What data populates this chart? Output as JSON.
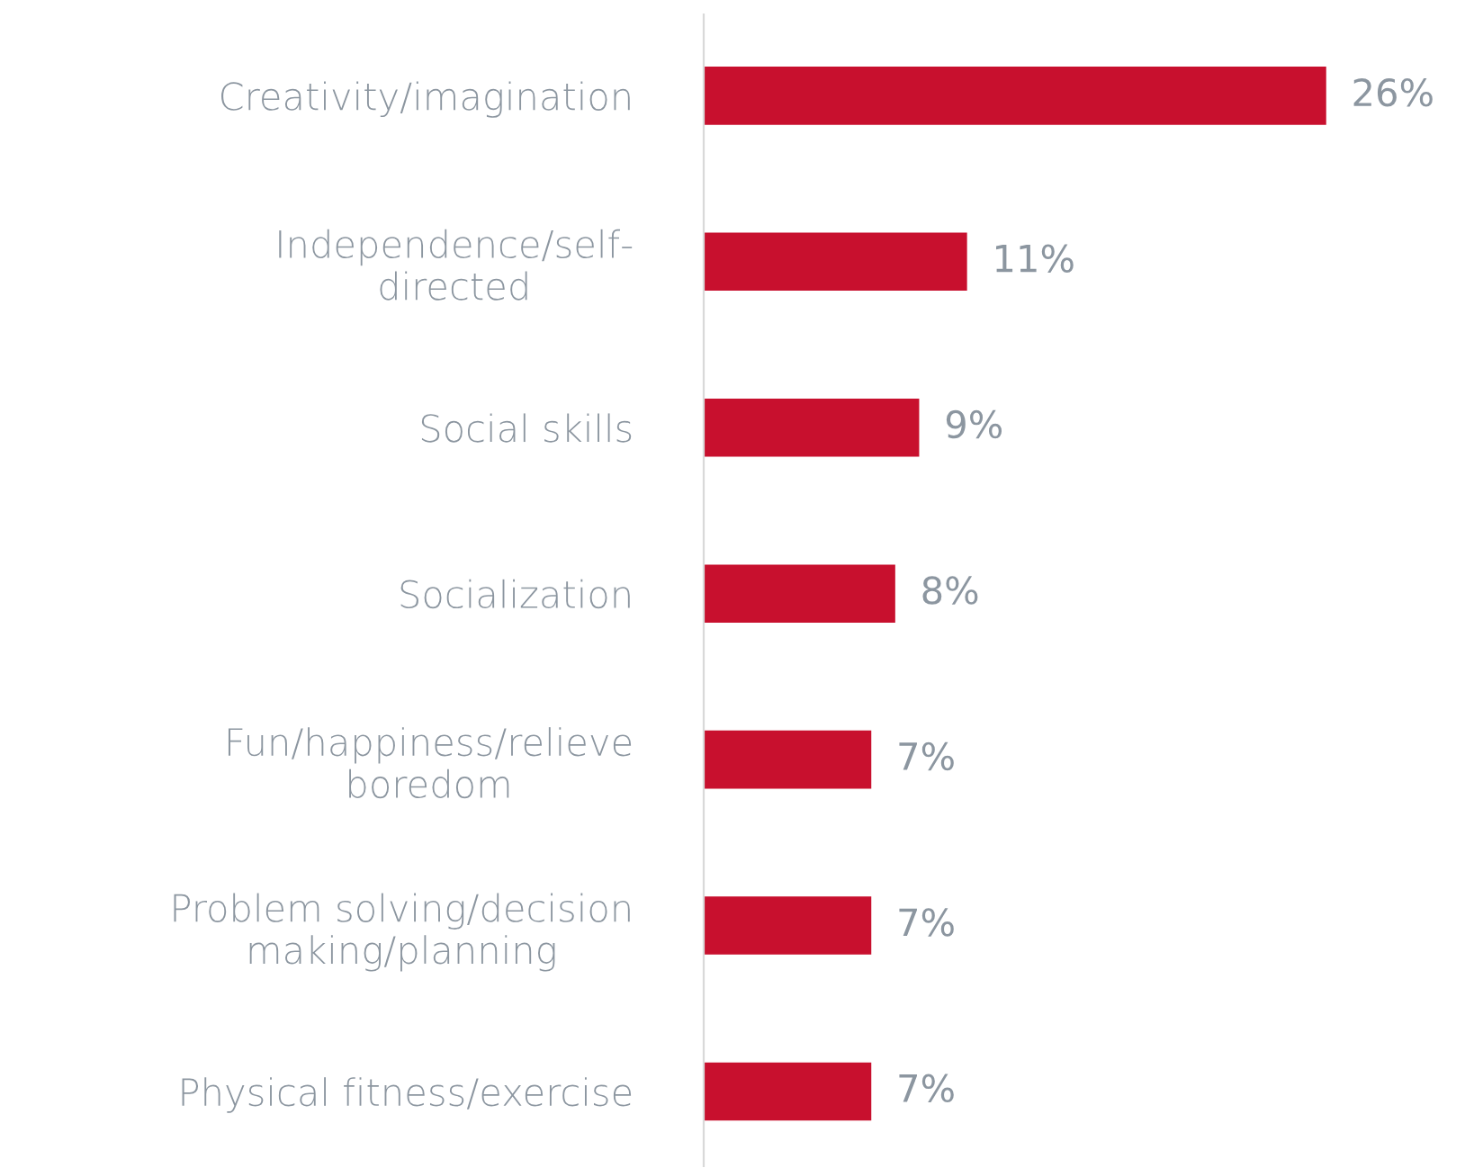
{
  "chart_data": {
    "type": "bar",
    "orientation": "horizontal",
    "categories": [
      "Creativity/imagination",
      "Independence/self-\ndirected",
      "Social skills",
      "Socialization",
      "Fun/happiness/relieve\nboredom",
      "Problem solving/decision\nmaking/planning",
      "Physical fitness/exercise"
    ],
    "values": [
      26,
      11,
      9,
      8,
      7,
      7,
      7
    ],
    "value_labels": [
      "26%",
      "11%",
      "9%",
      "8%",
      "7%",
      "7%",
      "7%"
    ],
    "color": "#c8102e",
    "tick_labels": "y"
  }
}
